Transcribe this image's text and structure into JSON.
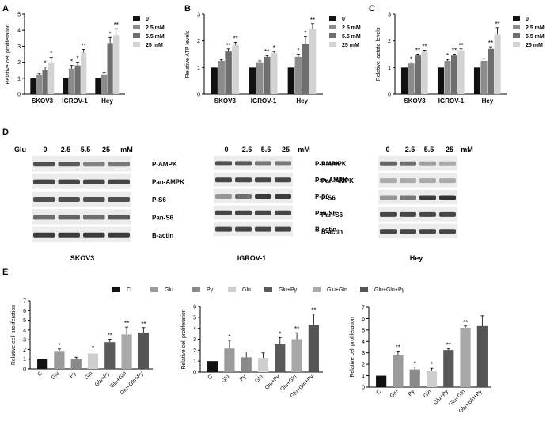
{
  "panel_labels": {
    "A": "A",
    "B": "B",
    "C": "C",
    "D": "D",
    "E": "E"
  },
  "abc_legend": [
    "0",
    "2.5 mM",
    "5.5 mM",
    "25 mM"
  ],
  "abc_colors": [
    "#111111",
    "#8c8c8c",
    "#6e6e6e",
    "#d3d3d3"
  ],
  "e_legend": [
    "C",
    "Glu",
    "Py",
    "Gln",
    "Glu+Py",
    "Glu+Gln",
    "Glu+Gln+Py"
  ],
  "e_colors": [
    "#111111",
    "#9b9b9b",
    "#8a8a8a",
    "#cfcfcf",
    "#595959",
    "#a8a8a8",
    "#555555"
  ],
  "chart_data": [
    {
      "id": "A",
      "type": "bar",
      "title": "",
      "ylabel": "Relative cell proliferation",
      "xlabel": "",
      "ylim": [
        0,
        5
      ],
      "yticks": [
        0,
        1,
        2,
        3,
        4,
        5
      ],
      "categories": [
        "SKOV3",
        "IGROV-1",
        "Hey"
      ],
      "series": [
        {
          "name": "0",
          "values": [
            1.0,
            1.0,
            1.0
          ],
          "err": [
            0,
            0,
            0
          ],
          "stars": [
            "",
            "",
            ""
          ]
        },
        {
          "name": "2.5 mM",
          "values": [
            1.2,
            1.6,
            1.2
          ],
          "err": [
            0.1,
            0.2,
            0.15
          ],
          "stars": [
            "",
            "*",
            ""
          ]
        },
        {
          "name": "5.5 mM",
          "values": [
            1.5,
            1.8,
            3.2
          ],
          "err": [
            0.2,
            0.2,
            0.35
          ],
          "stars": [
            "*",
            "*",
            "*"
          ]
        },
        {
          "name": "25 mM",
          "values": [
            2.0,
            2.6,
            3.7
          ],
          "err": [
            0.3,
            0.2,
            0.4
          ],
          "stars": [
            "*",
            "**",
            "**"
          ]
        }
      ]
    },
    {
      "id": "B",
      "type": "bar",
      "title": "",
      "ylabel": "Relative ATP levels",
      "xlabel": "",
      "ylim": [
        0,
        3
      ],
      "yticks": [
        0,
        1,
        2,
        3
      ],
      "categories": [
        "SKOV3",
        "IGROV-1",
        "Hey"
      ],
      "series": [
        {
          "name": "0",
          "values": [
            1.0,
            1.0,
            1.0
          ],
          "err": [
            0,
            0,
            0
          ],
          "stars": [
            "",
            "",
            ""
          ]
        },
        {
          "name": "2.5 mM",
          "values": [
            1.25,
            1.2,
            1.4
          ],
          "err": [
            0.05,
            0.05,
            0.1
          ],
          "stars": [
            "",
            "",
            "*"
          ]
        },
        {
          "name": "5.5 mM",
          "values": [
            1.6,
            1.4,
            1.9
          ],
          "err": [
            0.1,
            0.05,
            0.25
          ],
          "stars": [
            "**",
            "**",
            "*"
          ]
        },
        {
          "name": "25 mM",
          "values": [
            1.85,
            1.55,
            2.45
          ],
          "err": [
            0.1,
            0.05,
            0.2
          ],
          "stars": [
            "**",
            "*",
            "**"
          ]
        }
      ]
    },
    {
      "id": "C",
      "type": "bar",
      "title": "",
      "ylabel": "Relative lactate levels",
      "xlabel": "",
      "ylim": [
        0,
        3
      ],
      "yticks": [
        0,
        1,
        2,
        3
      ],
      "categories": [
        "SKOV3",
        "IGROV-1",
        "Hey"
      ],
      "series": [
        {
          "name": "0",
          "values": [
            1.0,
            1.0,
            1.0
          ],
          "err": [
            0,
            0,
            0
          ],
          "stars": [
            "",
            "",
            ""
          ]
        },
        {
          "name": "2.5 mM",
          "values": [
            1.15,
            1.25,
            1.25
          ],
          "err": [
            0.03,
            0.05,
            0.08
          ],
          "stars": [
            "*",
            "*",
            ""
          ]
        },
        {
          "name": "5.5 mM",
          "values": [
            1.45,
            1.45,
            1.7
          ],
          "err": [
            0.05,
            0.05,
            0.08
          ],
          "stars": [
            "**",
            "**",
            "**"
          ]
        },
        {
          "name": "25 mM",
          "values": [
            1.6,
            1.65,
            2.25
          ],
          "err": [
            0.05,
            0.05,
            0.25
          ],
          "stars": [
            "**",
            "**",
            "**"
          ]
        }
      ]
    },
    {
      "id": "E1",
      "type": "bar",
      "title": "",
      "ylabel": "Relative cell proliferation",
      "xlabel": "",
      "ylim": [
        0,
        7
      ],
      "yticks": [
        0,
        1,
        2,
        3,
        4,
        5,
        6,
        7
      ],
      "categories": [
        "C",
        "Glu",
        "Py",
        "Gln",
        "Glu+Py",
        "Glu+Gln",
        "Glu+Gln+Py"
      ],
      "values": [
        1.0,
        1.85,
        1.05,
        1.6,
        2.75,
        3.55,
        3.75
      ],
      "err": [
        0,
        0.2,
        0.15,
        0.15,
        0.3,
        0.75,
        0.5
      ],
      "stars": [
        "",
        "*",
        "",
        "*",
        "**",
        "**",
        "**"
      ]
    },
    {
      "id": "E2",
      "type": "bar",
      "title": "",
      "ylabel": "Relative cell proliferation",
      "xlabel": "",
      "ylim": [
        0,
        6
      ],
      "yticks": [
        0,
        1,
        2,
        3,
        4,
        5,
        6
      ],
      "categories": [
        "C",
        "Glu",
        "Py",
        "Gln",
        "Glu+Py",
        "Glu+Gln",
        "Glu+Gln+Py"
      ],
      "values": [
        1.0,
        2.15,
        1.35,
        1.3,
        2.55,
        3.0,
        4.3
      ],
      "err": [
        0,
        0.75,
        0.5,
        0.45,
        0.6,
        0.6,
        1.0
      ],
      "stars": [
        "",
        "*",
        "",
        "",
        "*",
        "**",
        "**"
      ]
    },
    {
      "id": "E3",
      "type": "bar",
      "title": "",
      "ylabel": "Relative cell proliferation",
      "xlabel": "",
      "ylim": [
        0,
        7
      ],
      "yticks": [
        0,
        1,
        2,
        3,
        4,
        5,
        6,
        7
      ],
      "categories": [
        "C",
        "Glu",
        "Py",
        "Gln",
        "Glu+Py",
        "Glu+Gln",
        "Glu+Gln+Py"
      ],
      "values": [
        1.0,
        2.8,
        1.55,
        1.45,
        3.25,
        5.2,
        5.35
      ],
      "err": [
        0,
        0.35,
        0.2,
        0.2,
        0.1,
        0.15,
        0.9
      ],
      "stars": [
        "",
        "**",
        "*",
        "*",
        "**",
        "**",
        ""
      ]
    }
  ],
  "blots": [
    {
      "cell": "SKOV3",
      "prefix": "Glu",
      "lanes": [
        "0",
        "2.5",
        "5.5",
        "25"
      ],
      "unit": "mM",
      "labels": [
        "P-AMPK",
        "Pan-AMPK",
        "P-S6",
        "Pan-S6",
        "B-actin"
      ],
      "bands": [
        [
          0.75,
          0.7,
          0.5,
          0.55
        ],
        [
          0.8,
          0.8,
          0.8,
          0.8
        ],
        [
          0.75,
          0.75,
          0.75,
          0.75
        ],
        [
          0.6,
          0.65,
          0.6,
          0.7
        ],
        [
          0.85,
          0.85,
          0.85,
          0.85
        ]
      ]
    },
    {
      "cell": "IGROV-1",
      "prefix": "",
      "lanes": [
        "0",
        "2.5",
        "5.5",
        "25"
      ],
      "unit": "mM",
      "labels": [
        "P-AMPK",
        "Pan-AMPK",
        "P-S6",
        "Pan-S6",
        "B-actin"
      ],
      "bands": [
        [
          0.75,
          0.7,
          0.55,
          0.55
        ],
        [
          0.8,
          0.8,
          0.8,
          0.8
        ],
        [
          0.4,
          0.6,
          0.85,
          0.85
        ],
        [
          0.8,
          0.8,
          0.8,
          0.8
        ],
        [
          0.8,
          0.8,
          0.8,
          0.8
        ]
      ]
    },
    {
      "cell": "Hey",
      "prefix": "",
      "lanes": [
        "0",
        "2.5",
        "5.5",
        "25"
      ],
      "unit": "mM",
      "labels": [
        "P-AMPK",
        "Pan-AMPK",
        "P-S6",
        "Pan-S6",
        "B-actin"
      ],
      "bands": [
        [
          0.65,
          0.6,
          0.35,
          0.3
        ],
        [
          0.3,
          0.3,
          0.3,
          0.3
        ],
        [
          0.4,
          0.55,
          0.85,
          0.9
        ],
        [
          0.8,
          0.8,
          0.8,
          0.8
        ],
        [
          0.8,
          0.8,
          0.8,
          0.8
        ]
      ]
    }
  ]
}
